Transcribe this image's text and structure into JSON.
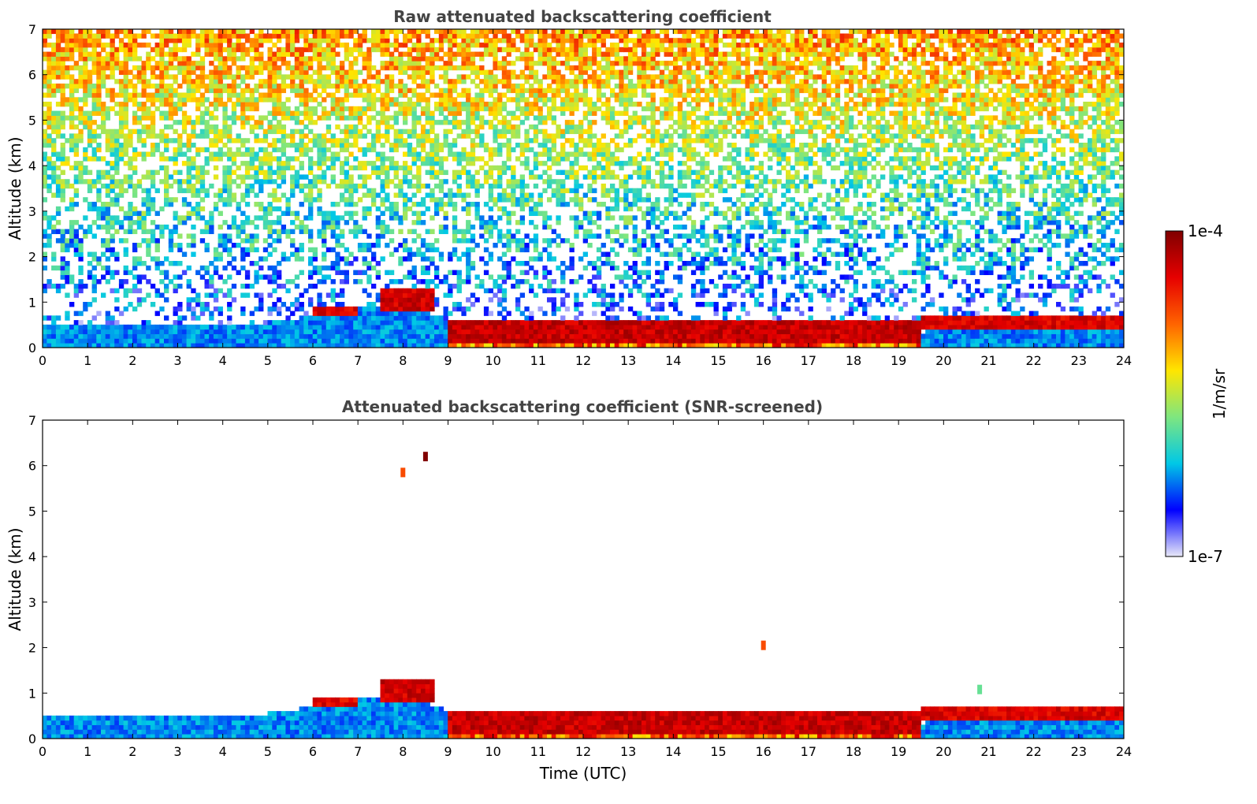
{
  "chart_data": [
    {
      "type": "heatmap",
      "title": "Raw attenuated backscattering coefficient",
      "xlabel": "",
      "ylabel": "Altitude (km)",
      "xlim": [
        0,
        24
      ],
      "ylim": [
        0,
        7
      ],
      "x_ticks": [
        "0",
        "1",
        "2",
        "3",
        "4",
        "5",
        "6",
        "7",
        "8",
        "9",
        "10",
        "11",
        "12",
        "13",
        "14",
        "15",
        "16",
        "17",
        "18",
        "19",
        "20",
        "21",
        "22",
        "23",
        "24"
      ],
      "y_ticks": [
        "0",
        "1",
        "2",
        "3",
        "4",
        "5",
        "6",
        "7"
      ],
      "screened": false,
      "boundary_layer_top_km": [
        [
          0,
          0.45
        ],
        [
          2,
          0.5
        ],
        [
          4,
          0.45
        ],
        [
          5,
          0.55
        ],
        [
          6,
          0.7
        ],
        [
          7,
          0.85
        ],
        [
          8,
          1.0
        ],
        [
          9,
          0.6
        ],
        [
          10,
          0.6
        ],
        [
          12,
          0.55
        ],
        [
          14,
          0.5
        ],
        [
          16,
          0.6
        ],
        [
          18,
          0.5
        ],
        [
          19,
          0.3
        ],
        [
          19.5,
          0.3
        ],
        [
          20,
          0.6
        ],
        [
          22,
          0.7
        ],
        [
          24,
          0.75
        ]
      ],
      "aerosol_layers": [
        {
          "x0": 6.0,
          "x1": 7.0,
          "y0": 0.7,
          "y1": 0.9,
          "level": 0.92
        },
        {
          "x0": 7.5,
          "x1": 8.7,
          "y0": 0.8,
          "y1": 1.25,
          "level": 0.95
        },
        {
          "x0": 9.0,
          "x1": 19.5,
          "y0": 0.1,
          "y1": 0.6,
          "level": 0.96
        },
        {
          "x0": 19.5,
          "x1": 24.0,
          "y0": 0.45,
          "y1": 0.7,
          "level": 0.93
        }
      ]
    },
    {
      "type": "heatmap",
      "title": "Attenuated backscattering coefficient (SNR-screened)",
      "xlabel": "Time (UTC)",
      "ylabel": "Altitude (km)",
      "xlim": [
        0,
        24
      ],
      "ylim": [
        0,
        7
      ],
      "x_ticks": [
        "0",
        "1",
        "2",
        "3",
        "4",
        "5",
        "6",
        "7",
        "8",
        "9",
        "10",
        "11",
        "12",
        "13",
        "14",
        "15",
        "16",
        "17",
        "18",
        "19",
        "20",
        "21",
        "22",
        "23",
        "24"
      ],
      "y_ticks": [
        "0",
        "1",
        "2",
        "3",
        "4",
        "5",
        "6",
        "7"
      ],
      "screened": true,
      "isolated_features": [
        {
          "x": 8.0,
          "y": 5.85,
          "level": 0.75
        },
        {
          "x": 8.5,
          "y": 6.2,
          "level": 1.0
        },
        {
          "x": 16.0,
          "y": 2.05,
          "level": 0.75
        },
        {
          "x": 20.8,
          "y": 1.08,
          "level": 0.4
        }
      ]
    }
  ],
  "colorbar": {
    "label": "1/m/sr",
    "max_label": "1e-4",
    "min_label": "1e-7",
    "colormap": [
      "#e8e8f8",
      "#0000ff",
      "#00c8e6",
      "#7fe67f",
      "#ffe600",
      "#ff6400",
      "#e60000",
      "#800000"
    ]
  },
  "style": {
    "title_color": "#444444",
    "axis_color": "#000000"
  }
}
